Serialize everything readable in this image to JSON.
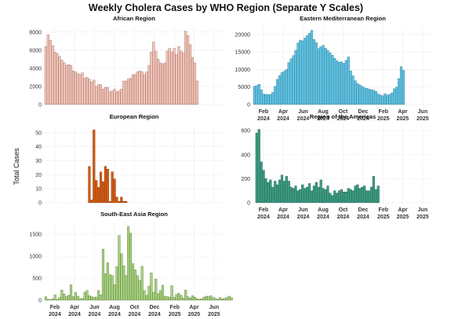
{
  "chart_data": {
    "type": "bar",
    "title": "Weekly Cholera Cases by WHO Region (Separate Y Scales)",
    "ylabel": "Total Cases",
    "x_axis": {
      "start": "2024-01-01",
      "end": "2025-06-30",
      "tick_dates": [
        "2024-02-01",
        "2024-04-01",
        "2024-06-01",
        "2024-08-01",
        "2024-10-01",
        "2024-12-01",
        "2025-02-01",
        "2025-04-01",
        "2025-06-01"
      ],
      "tick_labels": [
        [
          "Feb",
          "2024"
        ],
        [
          "Apr",
          "2024"
        ],
        [
          "Jun",
          "2024"
        ],
        [
          "Aug",
          "2024"
        ],
        [
          "Oct",
          "2024"
        ],
        [
          "Dec",
          "2024"
        ],
        [
          "Feb",
          "2025"
        ],
        [
          "Apr",
          "2025"
        ],
        [
          "Jun",
          "2025"
        ]
      ]
    },
    "panels": [
      {
        "name": "African Region",
        "color": "#f2c4b8",
        "edge": "#8a5a52",
        "ylim": [
          0,
          8500
        ],
        "yticks": [
          0,
          2000,
          4000,
          6000,
          8000
        ],
        "start": "2024-01-01",
        "values": [
          6400,
          7700,
          7100,
          6500,
          5800,
          5600,
          5300,
          4900,
          4600,
          4300,
          4400,
          4300,
          3700,
          3600,
          3400,
          3300,
          3500,
          2900,
          3000,
          2800,
          2500,
          2700,
          2000,
          2200,
          2200,
          1700,
          1900,
          1900,
          1400,
          1500,
          1700,
          1400,
          1500,
          1700,
          2600,
          2600,
          2800,
          2900,
          3300,
          3300,
          3600,
          3700,
          3600,
          3300,
          3600,
          4300,
          5800,
          6900,
          5900,
          5000,
          4600,
          4500,
          4600,
          5900,
          6200,
          5800,
          6200,
          5500,
          6400,
          5900,
          5700,
          8100,
          7600,
          6600,
          5200,
          4600,
          2600
        ]
      },
      {
        "name": "Eastern Mediterranean Region",
        "color": "#5fc2e2",
        "edge": "#2b6f86",
        "ylim": [
          0,
          22000
        ],
        "yticks": [
          0,
          5000,
          10000,
          15000,
          20000
        ],
        "start": "2024-01-01",
        "values": [
          5200,
          5400,
          5800,
          4200,
          3000,
          2900,
          2800,
          2900,
          3500,
          5200,
          7200,
          8300,
          9200,
          9500,
          10000,
          12000,
          13100,
          14000,
          15500,
          17600,
          18400,
          18200,
          19000,
          19700,
          20400,
          21200,
          18600,
          17700,
          16000,
          16500,
          16900,
          16100,
          15500,
          14800,
          14100,
          13200,
          12500,
          12100,
          12200,
          11800,
          12600,
          13600,
          9600,
          8200,
          6800,
          6000,
          5600,
          5200,
          4800,
          4600,
          4400,
          4200,
          4100,
          3800,
          3000,
          2700,
          2500,
          3100,
          2700,
          2900,
          3300,
          4500,
          5000,
          7400,
          10800,
          9800
        ]
      },
      {
        "name": "European Region",
        "color": "#d25a14",
        "edge": "#7a3208",
        "ylim": [
          0,
          55
        ],
        "yticks": [
          0,
          10,
          20,
          30,
          40,
          50
        ],
        "start": "2024-05-13",
        "values": [
          26,
          2,
          52,
          16,
          11,
          22,
          15,
          26,
          24,
          1,
          22,
          17,
          4,
          1,
          4,
          1,
          1
        ]
      },
      {
        "name": "Region of the Americas",
        "color": "#3a9a80",
        "edge": "#1d5a48",
        "ylim": [
          0,
          640
        ],
        "yticks": [
          0,
          200,
          400,
          600
        ],
        "start": "2024-01-08",
        "values": [
          580,
          610,
          340,
          270,
          200,
          170,
          190,
          130,
          180,
          150,
          190,
          230,
          180,
          220,
          180,
          130,
          120,
          140,
          100,
          110,
          150,
          120,
          130,
          160,
          100,
          140,
          170,
          130,
          190,
          120,
          110,
          140,
          80,
          60,
          100,
          80,
          100,
          110,
          90,
          90,
          120,
          110,
          100,
          140,
          150,
          120,
          130,
          140,
          100,
          100,
          130,
          220,
          110,
          140
        ]
      },
      {
        "name": "South-East Asia Region",
        "color": "#a8d080",
        "edge": "#4a6e2c",
        "ylim": [
          0,
          1750
        ],
        "yticks": [
          0,
          500,
          1000,
          1500
        ],
        "start": "2024-01-01",
        "values": [
          80,
          20,
          10,
          30,
          120,
          20,
          60,
          230,
          140,
          80,
          110,
          350,
          80,
          180,
          90,
          30,
          40,
          180,
          220,
          100,
          80,
          60,
          70,
          220,
          120,
          1160,
          600,
          850,
          580,
          560,
          350,
          760,
          1470,
          1060,
          780,
          560,
          1670,
          1520,
          830,
          690,
          560,
          450,
          770,
          220,
          110,
          320,
          620,
          180,
          480,
          150,
          220,
          340,
          90,
          80,
          70,
          330,
          60,
          130,
          160,
          110,
          50,
          230,
          80,
          50,
          100,
          70,
          30,
          20,
          30,
          70,
          90,
          80,
          100,
          60,
          40,
          20,
          60,
          30,
          40,
          60,
          90,
          60
        ]
      }
    ]
  }
}
